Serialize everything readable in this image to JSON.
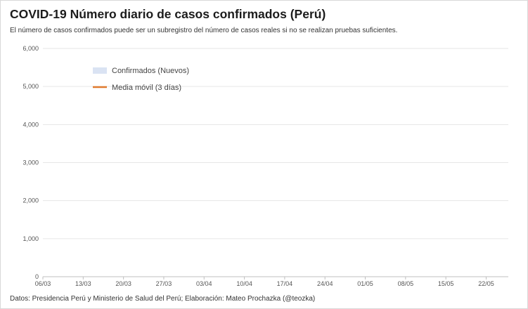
{
  "header": {
    "title": "COVID-19 Número diario de casos confirmados (Perú)",
    "subtitle": "El número de casos confirmados puede ser un subregistro del número de casos reales si no se realizan pruebas suficientes."
  },
  "footer": {
    "source": "Datos: Presidencia Perú y Ministerio de Salud del Perú; Elaboración: Mateo Prochazka (@teozka)"
  },
  "colors": {
    "bars": "#dae3f3",
    "line": "#e07a2e",
    "gridline": "#e6e6e6",
    "axis": "#bfbfbf",
    "text": "#555555"
  },
  "chart_data": {
    "type": "bar",
    "title": "COVID-19 Número diario de casos confirmados (Perú)",
    "xlabel": "",
    "ylabel": "",
    "ylim": [
      0,
      6000
    ],
    "yticks": [
      0,
      1000,
      2000,
      3000,
      4000,
      5000,
      6000
    ],
    "ytick_labels": [
      "0",
      "1,000",
      "2,000",
      "3,000",
      "4,000",
      "5,000",
      "6,000"
    ],
    "xtick_labels": [
      "06/03",
      "13/03",
      "20/03",
      "27/03",
      "03/04",
      "10/04",
      "17/04",
      "24/04",
      "01/05",
      "08/05",
      "15/05",
      "22/05"
    ],
    "grid": true,
    "legend_position": "top-left",
    "series": [
      {
        "name": "Confirmados (Nuevos)",
        "type": "bar",
        "values": []
      },
      {
        "name": "Media móvil (3 días)",
        "type": "line",
        "values": []
      }
    ]
  }
}
